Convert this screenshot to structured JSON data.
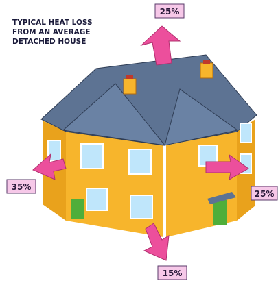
{
  "title": {
    "lines": [
      "TYPICAL HEAT LOSS",
      "FROM AN AVERAGE",
      "DETACHED HOUSE"
    ]
  },
  "labels": {
    "roof": "25%",
    "walls": "35%",
    "windows": "25%",
    "floor": "15%"
  }
}
